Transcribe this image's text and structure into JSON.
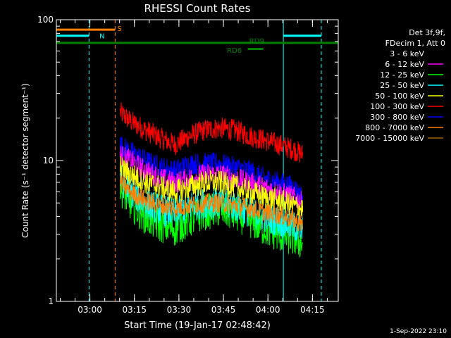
{
  "chart_data": {
    "type": "line",
    "title": "RHESSI Count Rates",
    "ylabel": "Count Rate (s⁻¹ detector segment⁻¹)",
    "xlabel": "Start Time (19-Jan-17 02:48:42)",
    "y_scale": "log",
    "ylim": [
      1,
      100
    ],
    "y_ticks": [
      {
        "value": 1,
        "label": "1"
      },
      {
        "value": 10,
        "label": "10"
      },
      {
        "value": 100,
        "label": "100"
      }
    ],
    "x_ticks": [
      "03:00",
      "03:15",
      "03:30",
      "03:45",
      "04:00",
      "04:15"
    ],
    "x_tick_minutes": [
      11.3,
      26.3,
      41.3,
      56.3,
      71.3,
      86.3
    ],
    "xlim_minutes": [
      0,
      95
    ],
    "legend": {
      "position": "top-right",
      "header": [
        "Det 3f,9f,",
        "FDecim 1, Att 0"
      ],
      "entries": [
        {
          "label": "3 - 6 keV",
          "color": "#000000"
        },
        {
          "label": "6 - 12 keV",
          "color": "#ff00ff"
        },
        {
          "label": "12 - 25 keV",
          "color": "#00ff00"
        },
        {
          "label": "25 - 50 keV",
          "color": "#00ffff"
        },
        {
          "label": "50 - 100 keV",
          "color": "#ffff00"
        },
        {
          "label": "100 - 300 keV",
          "color": "#ff0000"
        },
        {
          "label": "300 - 800 keV",
          "color": "#0000ff"
        },
        {
          "label": "800 - 7000 keV",
          "color": "#ff8000"
        },
        {
          "label": "7000 - 15000 keV",
          "color": "#a06400"
        }
      ]
    },
    "series": [
      {
        "color": "#ff0000",
        "noise": 0.18,
        "values": [
          [
            21.5,
            22
          ],
          [
            25,
            19
          ],
          [
            30,
            16.5
          ],
          [
            35,
            14.5
          ],
          [
            38,
            13.5
          ],
          [
            40,
            13
          ],
          [
            45,
            15
          ],
          [
            50,
            16.5
          ],
          [
            55,
            17
          ],
          [
            60,
            16.5
          ],
          [
            65,
            15
          ],
          [
            70,
            14
          ],
          [
            75,
            13
          ],
          [
            80,
            12
          ],
          [
            83,
            11
          ]
        ]
      },
      {
        "color": "#000000",
        "noise": 0.16,
        "values": [
          [
            21.5,
            14
          ],
          [
            25,
            12
          ],
          [
            30,
            10.5
          ],
          [
            35,
            9.5
          ],
          [
            40,
            9.5
          ],
          [
            45,
            10.5
          ],
          [
            50,
            11
          ],
          [
            55,
            11
          ],
          [
            60,
            10.5
          ],
          [
            65,
            9.5
          ],
          [
            70,
            8.5
          ],
          [
            75,
            7.5
          ],
          [
            80,
            7
          ],
          [
            83,
            6.5
          ]
        ]
      },
      {
        "color": "#0000ff",
        "noise": 0.18,
        "values": [
          [
            21.5,
            13
          ],
          [
            25,
            11.5
          ],
          [
            30,
            10
          ],
          [
            35,
            9
          ],
          [
            40,
            8.5
          ],
          [
            45,
            9.5
          ],
          [
            50,
            9.5
          ],
          [
            55,
            9.5
          ],
          [
            60,
            9
          ],
          [
            65,
            8.5
          ],
          [
            70,
            7.5
          ],
          [
            75,
            7
          ],
          [
            80,
            6.5
          ],
          [
            83,
            5.5
          ]
        ]
      },
      {
        "color": "#ff00ff",
        "noise": 0.18,
        "values": [
          [
            21.5,
            11
          ],
          [
            25,
            10
          ],
          [
            30,
            8.5
          ],
          [
            35,
            7.5
          ],
          [
            40,
            7
          ],
          [
            45,
            7.5
          ],
          [
            50,
            8
          ],
          [
            55,
            8
          ],
          [
            60,
            7.5
          ],
          [
            65,
            7
          ],
          [
            70,
            6.5
          ],
          [
            75,
            6
          ],
          [
            80,
            5.5
          ],
          [
            83,
            5
          ]
        ]
      },
      {
        "color": "#00ff00",
        "noise": 0.3,
        "values": [
          [
            21.5,
            6.5
          ],
          [
            25,
            5
          ],
          [
            30,
            4
          ],
          [
            35,
            3.5
          ],
          [
            40,
            3.3
          ],
          [
            45,
            3.8
          ],
          [
            50,
            4.3
          ],
          [
            55,
            4.5
          ],
          [
            60,
            4.2
          ],
          [
            65,
            3.8
          ],
          [
            70,
            3.3
          ],
          [
            75,
            3
          ],
          [
            80,
            2.8
          ],
          [
            83,
            2.6
          ]
        ]
      },
      {
        "color": "#00ffff",
        "noise": 0.26,
        "values": [
          [
            21.5,
            7.5
          ],
          [
            25,
            6
          ],
          [
            30,
            5
          ],
          [
            35,
            4.5
          ],
          [
            40,
            4.2
          ],
          [
            45,
            4.8
          ],
          [
            50,
            5
          ],
          [
            55,
            5
          ],
          [
            60,
            4.8
          ],
          [
            65,
            4.3
          ],
          [
            70,
            4
          ],
          [
            75,
            3.7
          ],
          [
            80,
            3.4
          ],
          [
            83,
            3.2
          ]
        ]
      },
      {
        "color": "#ffff00",
        "noise": 0.2,
        "values": [
          [
            21.5,
            9
          ],
          [
            25,
            8
          ],
          [
            30,
            7
          ],
          [
            35,
            6.5
          ],
          [
            40,
            6
          ],
          [
            45,
            6.5
          ],
          [
            50,
            7
          ],
          [
            55,
            7
          ],
          [
            60,
            6.5
          ],
          [
            65,
            6
          ],
          [
            70,
            5.5
          ],
          [
            75,
            5.2
          ],
          [
            80,
            4.8
          ],
          [
            83,
            4.5
          ]
        ]
      },
      {
        "color": "#ff8000",
        "noise": 0.16,
        "values": [
          [
            21.5,
            7
          ],
          [
            25,
            6
          ],
          [
            30,
            5.2
          ],
          [
            35,
            4.8
          ],
          [
            40,
            4.6
          ],
          [
            45,
            4.8
          ],
          [
            50,
            5
          ],
          [
            55,
            5
          ],
          [
            60,
            4.8
          ],
          [
            65,
            4.6
          ],
          [
            70,
            4.3
          ],
          [
            75,
            4.1
          ],
          [
            80,
            3.8
          ],
          [
            83,
            3.5
          ]
        ]
      }
    ],
    "vertical_markers": [
      {
        "x_minutes": 11,
        "color": "#00ffff",
        "style": "dashed"
      },
      {
        "x_minutes": 19.8,
        "color": "#ff8000",
        "style": "dashed"
      },
      {
        "x_minutes": 76.5,
        "color": "#00ffff",
        "style": "solid"
      },
      {
        "x_minutes": 89.3,
        "color": "#00ffff",
        "style": "dashed"
      }
    ],
    "flag_bars": [
      {
        "x_start": 0,
        "x_end": 19.8,
        "level": 85,
        "color": "#ff8000",
        "label": "S",
        "label_x": 21.3,
        "label_level": 87
      },
      {
        "x_start": 0,
        "x_end": 11,
        "level": 77,
        "color": "#00ffff",
        "label": "N",
        "label_x": 15.4,
        "label_level": 77
      },
      {
        "x_start": 76.5,
        "x_end": 89.3,
        "level": 77,
        "color": "#00ffff",
        "label": "",
        "label_x": 0,
        "label_level": 0
      },
      {
        "x_start": 0,
        "x_end": 95,
        "level": 68.5,
        "color": "#008000",
        "label": "RD9",
        "label_x": 67.5,
        "label_level": 71
      },
      {
        "x_start": 64.5,
        "x_end": 69.8,
        "level": 62,
        "color": "#008000",
        "label": "RD6",
        "label_x": 60,
        "label_level": 61
      }
    ]
  },
  "footer_timestamp": "1-Sep-2022 23:10"
}
